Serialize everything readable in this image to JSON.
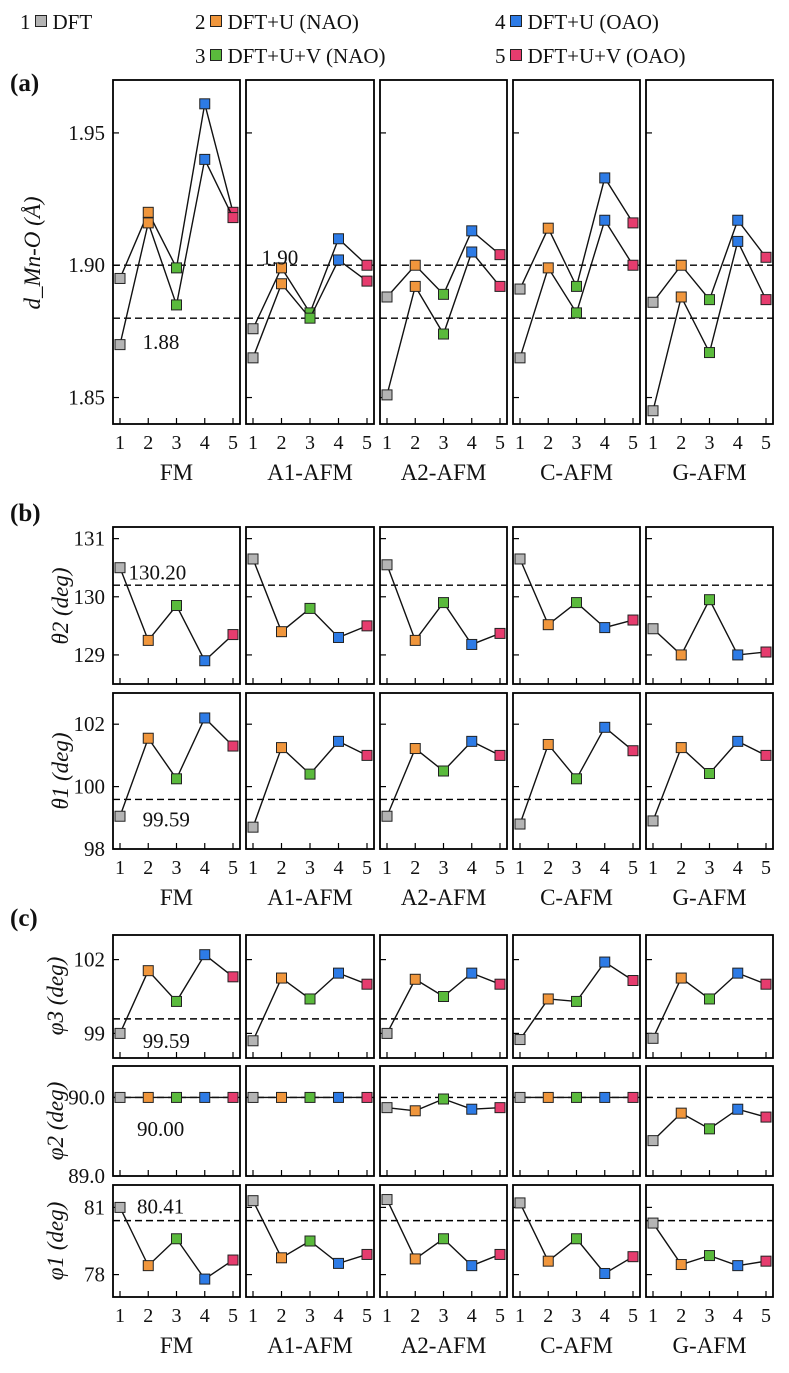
{
  "legend": [
    {
      "num": "1",
      "label": "DFT",
      "color": "#b4b4b4"
    },
    {
      "num": "2",
      "label": "DFT+U (NAO)",
      "color": "#f0963c"
    },
    {
      "num": "3",
      "label": "DFT+U+V (NAO)",
      "color": "#5aba3c"
    },
    {
      "num": "4",
      "label": "DFT+U (OAO)",
      "color": "#2d7be6"
    },
    {
      "num": "5",
      "label": "DFT+U+V (OAO)",
      "color": "#e63c6e"
    }
  ],
  "panel_labels": {
    "a": "(a)",
    "b": "(b)",
    "c": "(c)"
  },
  "chart_data": [
    {
      "id": "a",
      "type": "line",
      "ylabel": "d_Mn-O (Å)",
      "ylim": [
        1.84,
        1.97
      ],
      "yticks": [
        "1.85",
        "1.90",
        "1.95"
      ],
      "xticks": [
        "1",
        "2",
        "3",
        "4",
        "5"
      ],
      "groups": [
        "FM",
        "A1-AFM",
        "A2-AFM",
        "C-AFM",
        "G-AFM"
      ],
      "reference_lines": [
        1.9,
        1.88
      ],
      "annotations": [
        {
          "text": "1.90",
          "group": 1,
          "x": 1.3,
          "y": 1.903
        },
        {
          "text": "1.88",
          "group": 0,
          "x": 1.8,
          "y": 1.871
        }
      ],
      "series": [
        {
          "name": "upper",
          "values": [
            [
              1.895,
              1.92,
              1.899,
              1.961,
              1.92
            ],
            [
              1.876,
              1.899,
              1.882,
              1.91,
              1.9
            ],
            [
              1.888,
              1.9,
              1.889,
              1.913,
              1.904
            ],
            [
              1.891,
              1.914,
              1.892,
              1.933,
              1.916
            ],
            [
              1.886,
              1.9,
              1.887,
              1.917,
              1.903
            ]
          ]
        },
        {
          "name": "lower",
          "values": [
            [
              1.87,
              1.916,
              1.885,
              1.94,
              1.918
            ],
            [
              1.865,
              1.893,
              1.88,
              1.902,
              1.894
            ],
            [
              1.851,
              1.892,
              1.874,
              1.905,
              1.892
            ],
            [
              1.865,
              1.899,
              1.882,
              1.917,
              1.9
            ],
            [
              1.845,
              1.888,
              1.867,
              1.909,
              1.887
            ]
          ]
        }
      ]
    },
    {
      "id": "b_theta2",
      "type": "line",
      "ylabel": "θ2 (deg)",
      "ylim": [
        128.5,
        131.2
      ],
      "yticks": [
        "129",
        "130",
        "131"
      ],
      "groups": [
        "FM",
        "A1-AFM",
        "A2-AFM",
        "C-AFM",
        "G-AFM"
      ],
      "reference_lines": [
        130.2
      ],
      "annotations": [
        {
          "text": "130.20",
          "group": 0,
          "x": 1.3,
          "y": 130.42
        }
      ],
      "series": [
        {
          "name": "theta2",
          "values": [
            [
              130.5,
              129.25,
              129.85,
              128.9,
              129.35
            ],
            [
              130.65,
              129.4,
              129.8,
              129.3,
              129.5
            ],
            [
              130.55,
              129.25,
              129.9,
              129.18,
              129.37
            ],
            [
              130.65,
              129.52,
              129.9,
              129.47,
              129.6
            ],
            [
              129.45,
              129.0,
              129.95,
              129.0,
              129.05
            ]
          ]
        }
      ]
    },
    {
      "id": "b_theta1",
      "type": "line",
      "ylabel": "θ1 (deg)",
      "ylim": [
        98,
        103
      ],
      "yticks": [
        "98",
        "100",
        "102"
      ],
      "xticks": [
        "1",
        "2",
        "3",
        "4",
        "5"
      ],
      "groups": [
        "FM",
        "A1-AFM",
        "A2-AFM",
        "C-AFM",
        "G-AFM"
      ],
      "reference_lines": [
        99.59
      ],
      "annotations": [
        {
          "text": "99.59",
          "group": 0,
          "x": 1.8,
          "y": 98.95
        }
      ],
      "series": [
        {
          "name": "theta1",
          "values": [
            [
              99.05,
              101.55,
              100.25,
              102.2,
              101.3
            ],
            [
              98.7,
              101.25,
              100.4,
              101.45,
              101.0
            ],
            [
              99.05,
              101.22,
              100.5,
              101.45,
              101.0
            ],
            [
              98.8,
              101.35,
              100.25,
              101.9,
              101.15
            ],
            [
              98.9,
              101.25,
              100.42,
              101.45,
              101.0
            ]
          ]
        }
      ]
    },
    {
      "id": "c_phi3",
      "type": "line",
      "ylabel": "φ3 (deg)",
      "ylim": [
        98,
        103
      ],
      "yticks": [
        "99",
        "102"
      ],
      "groups": [
        "FM",
        "A1-AFM",
        "A2-AFM",
        "C-AFM",
        "G-AFM"
      ],
      "reference_lines": [
        99.59
      ],
      "annotations": [
        {
          "text": "99.59",
          "group": 0,
          "x": 1.8,
          "y": 98.7
        }
      ],
      "series": [
        {
          "name": "phi3",
          "values": [
            [
              99.0,
              101.55,
              100.3,
              102.2,
              101.3
            ],
            [
              98.7,
              101.25,
              100.4,
              101.45,
              101.0
            ],
            [
              99.0,
              101.2,
              100.5,
              101.45,
              101.0
            ],
            [
              98.75,
              100.4,
              100.3,
              101.9,
              101.15
            ],
            [
              98.8,
              101.25,
              100.4,
              101.45,
              101.0
            ]
          ]
        }
      ]
    },
    {
      "id": "c_phi2",
      "type": "line",
      "ylabel": "φ2 (deg)",
      "ylim": [
        89.0,
        90.4
      ],
      "yticks": [
        "89.0",
        "90.0"
      ],
      "groups": [
        "FM",
        "A1-AFM",
        "A2-AFM",
        "C-AFM",
        "G-AFM"
      ],
      "reference_lines": [
        90.0
      ],
      "annotations": [
        {
          "text": "90.00",
          "group": 0,
          "x": 1.6,
          "y": 89.6
        }
      ],
      "series": [
        {
          "name": "phi2",
          "values": [
            [
              90.0,
              90.0,
              90.0,
              90.0,
              90.0
            ],
            [
              90.0,
              90.0,
              90.0,
              90.0,
              90.0
            ],
            [
              89.87,
              89.83,
              89.98,
              89.85,
              89.87
            ],
            [
              90.0,
              90.0,
              90.0,
              90.0,
              90.0
            ],
            [
              89.45,
              89.8,
              89.6,
              89.85,
              89.75
            ]
          ]
        }
      ]
    },
    {
      "id": "c_phi1",
      "type": "line",
      "ylabel": "φ1 (deg)",
      "ylim": [
        77,
        82
      ],
      "yticks": [
        "78",
        "81"
      ],
      "xticks": [
        "1",
        "2",
        "3",
        "4",
        "5"
      ],
      "groups": [
        "FM",
        "A1-AFM",
        "A2-AFM",
        "C-AFM",
        "G-AFM"
      ],
      "reference_lines": [
        80.41
      ],
      "annotations": [
        {
          "text": "80.41",
          "group": 0,
          "x": 1.6,
          "y": 81.05
        }
      ],
      "series": [
        {
          "name": "phi1",
          "values": [
            [
              81.0,
              78.4,
              79.6,
              77.8,
              78.65
            ],
            [
              81.3,
              78.75,
              79.5,
              78.5,
              78.9
            ],
            [
              81.35,
              78.7,
              79.6,
              78.4,
              78.9
            ],
            [
              81.2,
              78.6,
              79.6,
              78.05,
              78.8
            ],
            [
              80.3,
              78.45,
              78.85,
              78.4,
              78.6
            ]
          ]
        }
      ]
    }
  ]
}
